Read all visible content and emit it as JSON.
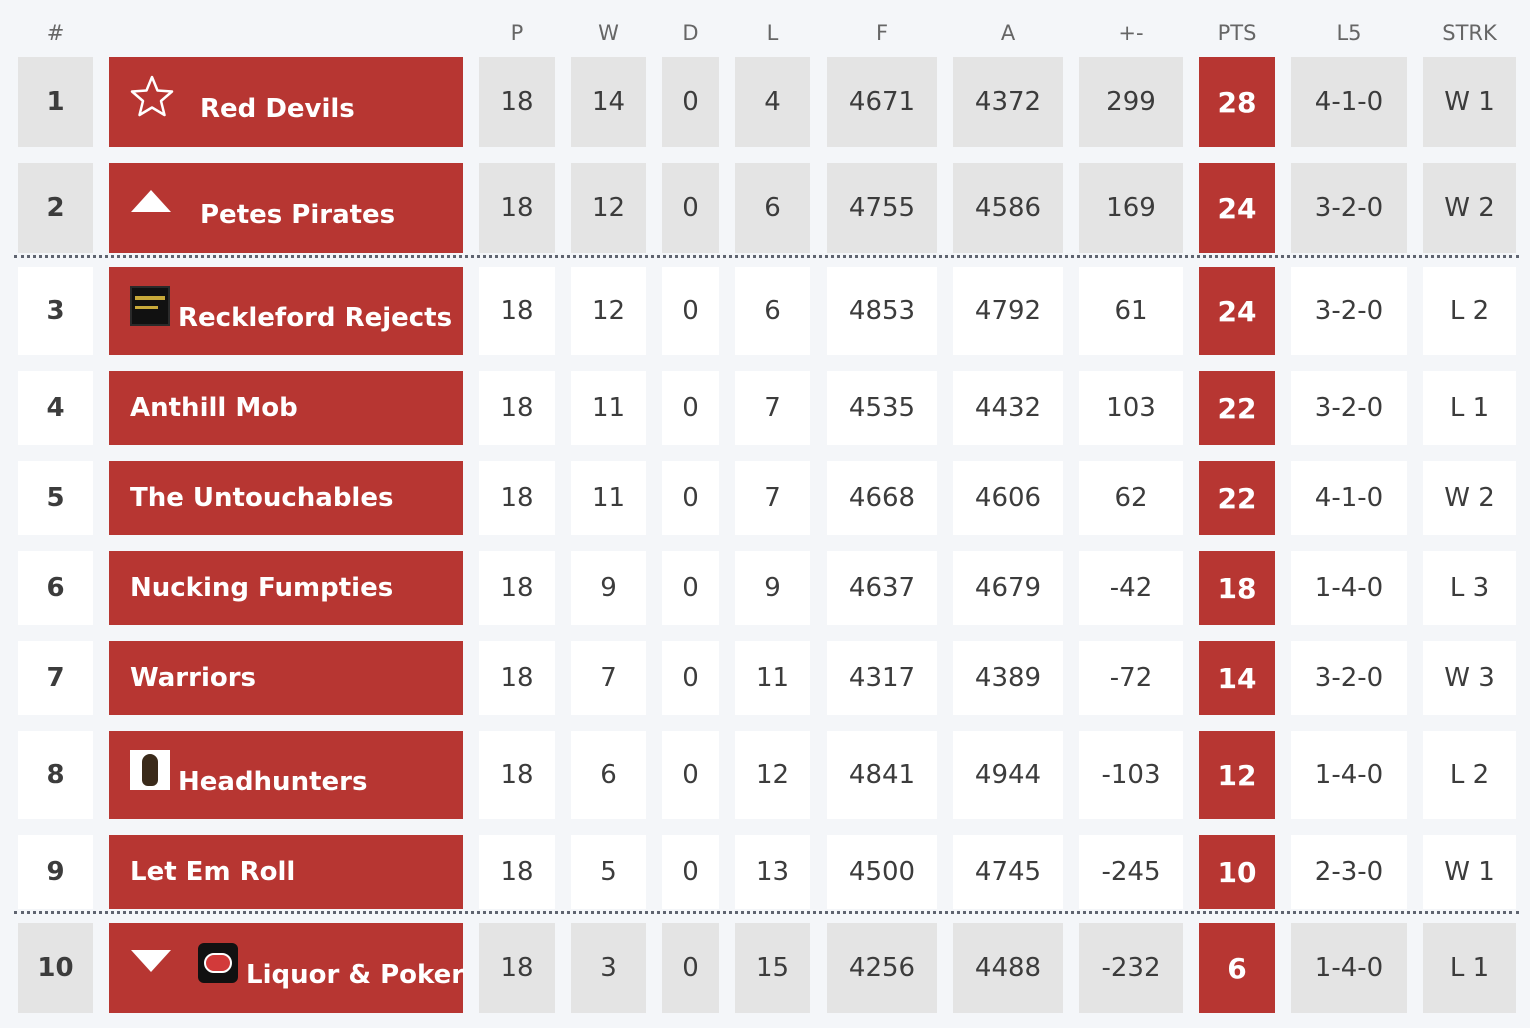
{
  "columns": {
    "rank": "#",
    "p": "P",
    "w": "W",
    "d": "D",
    "l": "L",
    "f": "F",
    "a": "A",
    "diff": "+-",
    "pts": "PTS",
    "l5": "L5",
    "strk": "STRK"
  },
  "rows": [
    {
      "rank": "1",
      "team": "Red Devils",
      "icon": "star-icon",
      "p": "18",
      "w": "14",
      "d": "0",
      "l": "4",
      "f": "4671",
      "a": "4372",
      "diff": "299",
      "pts": "28",
      "l5": "4-1-0",
      "strk": "W 1"
    },
    {
      "rank": "2",
      "team": "Petes Pirates",
      "icon": "up-arrow-icon",
      "p": "18",
      "w": "12",
      "d": "0",
      "l": "6",
      "f": "4755",
      "a": "4586",
      "diff": "169",
      "pts": "24",
      "l5": "3-2-0",
      "strk": "W 2"
    },
    {
      "rank": "3",
      "team": "Reckleford Rejects",
      "icon": "team-logo",
      "p": "18",
      "w": "12",
      "d": "0",
      "l": "6",
      "f": "4853",
      "a": "4792",
      "diff": "61",
      "pts": "24",
      "l5": "3-2-0",
      "strk": "L 2"
    },
    {
      "rank": "4",
      "team": "Anthill Mob",
      "icon": "",
      "p": "18",
      "w": "11",
      "d": "0",
      "l": "7",
      "f": "4535",
      "a": "4432",
      "diff": "103",
      "pts": "22",
      "l5": "3-2-0",
      "strk": "L 1"
    },
    {
      "rank": "5",
      "team": "The Untouchables",
      "icon": "",
      "p": "18",
      "w": "11",
      "d": "0",
      "l": "7",
      "f": "4668",
      "a": "4606",
      "diff": "62",
      "pts": "22",
      "l5": "4-1-0",
      "strk": "W 2"
    },
    {
      "rank": "6",
      "team": "Nucking Fumpties",
      "icon": "",
      "p": "18",
      "w": "9",
      "d": "0",
      "l": "9",
      "f": "4637",
      "a": "4679",
      "diff": "-42",
      "pts": "18",
      "l5": "1-4-0",
      "strk": "L 3"
    },
    {
      "rank": "7",
      "team": "Warriors",
      "icon": "",
      "p": "18",
      "w": "7",
      "d": "0",
      "l": "11",
      "f": "4317",
      "a": "4389",
      "diff": "-72",
      "pts": "14",
      "l5": "3-2-0",
      "strk": "W 3"
    },
    {
      "rank": "8",
      "team": "Headhunters",
      "icon": "team-logo",
      "p": "18",
      "w": "6",
      "d": "0",
      "l": "12",
      "f": "4841",
      "a": "4944",
      "diff": "-103",
      "pts": "12",
      "l5": "1-4-0",
      "strk": "L 2"
    },
    {
      "rank": "9",
      "team": "Let Em Roll",
      "icon": "",
      "p": "18",
      "w": "5",
      "d": "0",
      "l": "13",
      "f": "4500",
      "a": "4745",
      "diff": "-245",
      "pts": "10",
      "l5": "2-3-0",
      "strk": "W 1"
    },
    {
      "rank": "10",
      "team": "Liquor & Poker",
      "icon": "down-arrow-icon",
      "p": "18",
      "w": "3",
      "d": "0",
      "l": "15",
      "f": "4256",
      "a": "4488",
      "diff": "-232",
      "pts": "6",
      "l5": "1-4-0",
      "strk": "L 1"
    }
  ],
  "colors": {
    "team_bg": "#b73632",
    "pts_bg": "#b73632",
    "promoted_row_bg": "#e4e4e4",
    "relegated_row_bg": "#e4e4e4",
    "normal_row_bg": "#ffffff",
    "page_bg": "#f4f6f9"
  }
}
